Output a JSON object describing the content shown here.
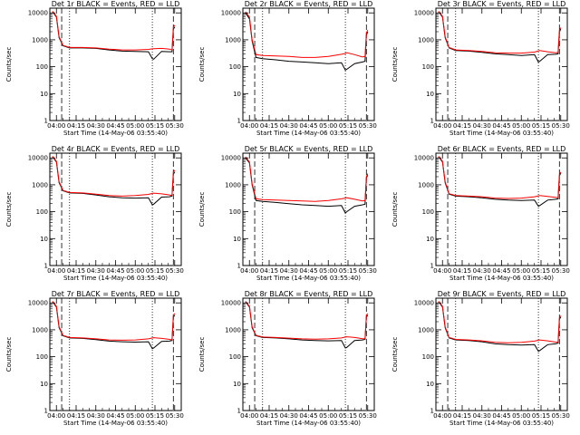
{
  "chart_data": {
    "type": "line",
    "layout": "3x3 grid of small multiples",
    "common": {
      "xlabel": "Start Time (14-May-06 03:55:40)",
      "ylabel": "Counts/sec",
      "x_tick_labels": [
        "04:00",
        "04:15",
        "04:30",
        "04:45",
        "05:00",
        "05:15",
        "05:30"
      ],
      "x_tick_minutes": [
        0,
        15,
        30,
        45,
        60,
        75,
        90
      ],
      "x_range_minutes": [
        -5,
        95
      ],
      "y_scale": "log",
      "y_range": [
        1,
        15000
      ],
      "y_tick_values": [
        1,
        10,
        100,
        1000,
        10000
      ],
      "y_tick_labels": [
        "1",
        "10",
        "100",
        "1000",
        "10000"
      ],
      "series_colors": {
        "events": "#000000",
        "lld": "#ff0000"
      },
      "dashed_vlines_minutes": [
        4,
        89
      ],
      "dotted_vlines_minutes": [
        10,
        73
      ],
      "x_unit_note": "minutes after 04:00 on 14-May-06"
    },
    "panels": [
      {
        "title": "Det 1r BLACK = Events, RED = LLD",
        "x_tick_labels": [
          "04:00",
          "04:15",
          "04:30",
          "04:45",
          "05:00",
          "05:15",
          "05:30"
        ],
        "x": [
          -3,
          0,
          2,
          5,
          10,
          20,
          30,
          40,
          50,
          60,
          70,
          73,
          74,
          80,
          86,
          88,
          89,
          90
        ],
        "events": [
          11000,
          7000,
          1200,
          600,
          500,
          500,
          480,
          420,
          380,
          370,
          360,
          200,
          190,
          370,
          360,
          360,
          2500,
          3000
        ],
        "lld": [
          11500,
          7500,
          1300,
          620,
          520,
          520,
          500,
          450,
          420,
          420,
          440,
          460,
          470,
          480,
          450,
          420,
          3000,
          3500
        ]
      },
      {
        "title": "Det 2r BLACK = Events, RED = LLD",
        "x_tick_labels": [
          "04:00",
          "04:15",
          "04:30",
          "04:45",
          "05:00",
          "05:15",
          "05:30"
        ],
        "x": [
          -3,
          0,
          2,
          5,
          10,
          20,
          30,
          40,
          50,
          60,
          70,
          73,
          74,
          80,
          86,
          88,
          89,
          90
        ],
        "events": [
          10000,
          6000,
          900,
          220,
          200,
          180,
          160,
          150,
          140,
          130,
          140,
          75,
          80,
          130,
          150,
          160,
          1500,
          2000
        ],
        "lld": [
          11000,
          7000,
          1000,
          280,
          260,
          250,
          240,
          220,
          220,
          240,
          290,
          310,
          330,
          280,
          230,
          240,
          1800,
          2300
        ]
      },
      {
        "title": "Det 3r BLACK = Events, RED = LLD",
        "x_tick_labels": [
          "04:00",
          "04:15",
          "04:30",
          "04:45",
          "05:00",
          "05:15",
          "05:30"
        ],
        "x": [
          -3,
          0,
          2,
          5,
          10,
          20,
          30,
          40,
          50,
          60,
          70,
          73,
          74,
          80,
          86,
          88,
          89,
          90
        ],
        "events": [
          11000,
          7000,
          1200,
          500,
          400,
          380,
          340,
          300,
          280,
          260,
          280,
          150,
          160,
          280,
          290,
          300,
          2000,
          2500
        ],
        "lld": [
          11500,
          7500,
          1300,
          520,
          420,
          400,
          370,
          330,
          320,
          320,
          350,
          390,
          400,
          360,
          330,
          340,
          2300,
          2800
        ]
      },
      {
        "title": "Det 4r BLACK = Events, RED = LLD",
        "x_tick_labels": [
          "04:00",
          "04:15",
          "04:30",
          "04:45",
          "05:00",
          "05:15",
          "05:30"
        ],
        "x": [
          -3,
          0,
          2,
          5,
          10,
          20,
          30,
          40,
          50,
          60,
          70,
          73,
          74,
          80,
          86,
          88,
          89,
          90
        ],
        "events": [
          11000,
          7000,
          1200,
          600,
          500,
          480,
          420,
          360,
          330,
          320,
          330,
          180,
          190,
          350,
          360,
          380,
          2500,
          3000
        ],
        "lld": [
          11500,
          7500,
          1300,
          620,
          520,
          500,
          450,
          400,
          380,
          400,
          440,
          480,
          490,
          460,
          420,
          400,
          3000,
          3500
        ]
      },
      {
        "title": "Det 5r BLACK = Events, RED = LLD",
        "x_tick_labels": [
          "04:00",
          "04:15",
          "04:30",
          "04:45",
          "05:00",
          "05:15",
          "05:30"
        ],
        "x": [
          -3,
          0,
          2,
          5,
          10,
          20,
          30,
          40,
          50,
          60,
          70,
          73,
          74,
          80,
          86,
          88,
          89,
          90
        ],
        "events": [
          10000,
          6500,
          1000,
          260,
          240,
          220,
          200,
          180,
          170,
          160,
          170,
          90,
          100,
          160,
          180,
          190,
          1800,
          2300
        ],
        "lld": [
          11000,
          7000,
          1100,
          300,
          280,
          270,
          260,
          250,
          240,
          260,
          300,
          320,
          330,
          290,
          250,
          260,
          2000,
          2600
        ]
      },
      {
        "title": "Det 6r BLACK = Events, RED = LLD",
        "x_tick_labels": [
          "04:00",
          "04:15",
          "04:30",
          "04:45",
          "05:00",
          "05:15",
          "05:30"
        ],
        "x": [
          -3,
          0,
          2,
          5,
          10,
          20,
          30,
          40,
          50,
          60,
          70,
          73,
          74,
          80,
          86,
          88,
          89,
          90
        ],
        "events": [
          11000,
          7000,
          1200,
          450,
          380,
          360,
          330,
          290,
          270,
          260,
          270,
          160,
          170,
          270,
          290,
          300,
          2200,
          2700
        ],
        "lld": [
          11500,
          7500,
          1300,
          470,
          400,
          380,
          360,
          320,
          310,
          320,
          360,
          390,
          400,
          370,
          340,
          330,
          2400,
          3000
        ]
      },
      {
        "title": "Det 7r BLACK = Events, RED = LLD",
        "x_tick_labels": [
          "04:00",
          "04:15",
          "04:30",
          "04:45",
          "05:00",
          "05:15",
          "05:30"
        ],
        "x": [
          -3,
          0,
          2,
          5,
          10,
          20,
          30,
          40,
          50,
          60,
          70,
          73,
          74,
          80,
          86,
          88,
          89,
          90
        ],
        "events": [
          11000,
          7000,
          1200,
          600,
          500,
          480,
          430,
          380,
          360,
          350,
          360,
          200,
          210,
          370,
          380,
          400,
          3000,
          3500
        ],
        "lld": [
          11500,
          7500,
          1300,
          620,
          520,
          500,
          460,
          420,
          410,
          420,
          460,
          500,
          510,
          480,
          440,
          420,
          3500,
          4000
        ]
      },
      {
        "title": "Det 8r BLACK = Events, RED = LLD",
        "x_tick_labels": [
          "04:00",
          "04:15",
          "04:30",
          "04:45",
          "05:00",
          "05:15",
          "05:30"
        ],
        "x": [
          -3,
          0,
          2,
          5,
          10,
          20,
          30,
          40,
          50,
          60,
          70,
          73,
          74,
          80,
          86,
          88,
          89,
          90
        ],
        "events": [
          11000,
          7000,
          1200,
          600,
          520,
          500,
          460,
          420,
          400,
          390,
          400,
          210,
          220,
          400,
          420,
          440,
          3000,
          3500
        ],
        "lld": [
          11500,
          7500,
          1300,
          620,
          540,
          520,
          490,
          460,
          450,
          460,
          500,
          540,
          550,
          520,
          470,
          460,
          3500,
          4000
        ]
      },
      {
        "title": "Det 9r BLACK = Events, RED = LLD",
        "x_tick_labels": [
          "04:00",
          "04:15",
          "04:30",
          "04:45",
          "05:00",
          "05:15",
          "05:30"
        ],
        "x": [
          -3,
          0,
          2,
          5,
          10,
          20,
          30,
          40,
          50,
          60,
          70,
          73,
          74,
          80,
          86,
          88,
          89,
          90
        ],
        "events": [
          11000,
          7000,
          1200,
          500,
          420,
          400,
          360,
          300,
          280,
          270,
          280,
          160,
          170,
          280,
          300,
          320,
          2500,
          3000
        ],
        "lld": [
          11500,
          7500,
          1300,
          520,
          440,
          420,
          390,
          340,
          330,
          340,
          380,
          410,
          420,
          390,
          350,
          340,
          2800,
          3300
        ]
      }
    ]
  }
}
